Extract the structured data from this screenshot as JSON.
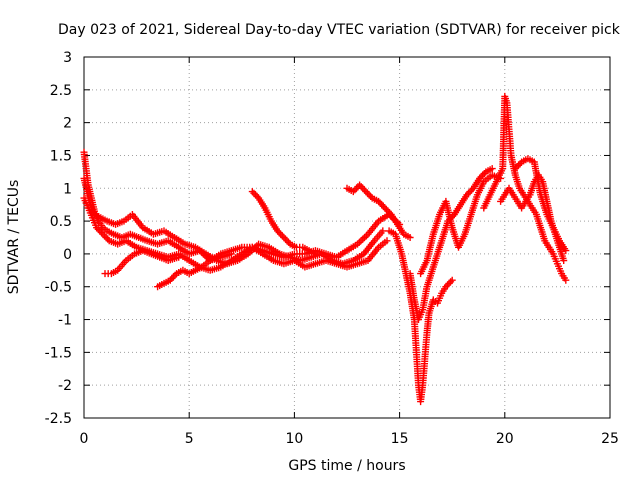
{
  "chart_data": {
    "type": "scatter",
    "title": "Day 023 of 2021, Sidereal Day-to-day VTEC variation (SDTVAR) for receiver pick",
    "xlabel": "GPS time / hours",
    "ylabel": "SDTVAR / TECUs",
    "xlim": [
      0,
      25
    ],
    "ylim": [
      -2.5,
      3
    ],
    "xticks": [
      0,
      5,
      10,
      15,
      20,
      25
    ],
    "yticks": [
      -2.5,
      -2,
      -1.5,
      -1,
      -0.5,
      0,
      0.5,
      1,
      1.5,
      2,
      2.5,
      3
    ],
    "xtick_labels": [
      "0",
      "5",
      "10",
      "15",
      "20",
      "25"
    ],
    "ytick_labels": [
      "-2.5",
      "-2",
      "-1.5",
      "-1",
      "-0.5",
      "0",
      "0.5",
      "1",
      "1.5",
      "2",
      "2.5",
      "3"
    ],
    "grid": true,
    "marker": "plus",
    "color": "#ff0000",
    "series": [
      {
        "x": [
          0.0,
          0.1,
          0.2,
          0.35,
          0.5,
          0.7,
          0.9,
          1.1,
          1.4,
          1.8,
          2.2,
          2.6,
          3.0,
          3.5,
          4.0,
          4.5,
          5.0,
          5.5,
          6.0,
          6.5,
          7.0,
          7.5,
          8.0,
          8.5,
          9.0,
          9.5,
          10.0,
          10.5,
          11.0,
          11.5,
          12.0,
          12.5,
          13.0,
          13.5,
          14.0,
          14.5,
          15.0
        ],
        "y": [
          1.55,
          1.3,
          1.05,
          0.85,
          0.65,
          0.5,
          0.4,
          0.35,
          0.3,
          0.25,
          0.3,
          0.25,
          0.2,
          0.15,
          0.2,
          0.1,
          0.0,
          0.05,
          -0.1,
          0.0,
          0.05,
          0.1,
          0.1,
          0.05,
          0.0,
          -0.05,
          0.0,
          0.0,
          0.05,
          0.0,
          -0.05,
          0.05,
          0.15,
          0.3,
          0.5,
          0.6,
          0.45
        ]
      },
      {
        "x": [
          0.0,
          0.15,
          0.3,
          0.5,
          0.8,
          1.1,
          1.5,
          1.9,
          2.3,
          2.8,
          3.3,
          3.8,
          4.3,
          4.8,
          5.3,
          5.8,
          6.3,
          6.8,
          7.3,
          7.8,
          8.3,
          8.8,
          9.3,
          9.8,
          10.3,
          10.8,
          11.3,
          11.8,
          12.3,
          12.8,
          13.3,
          13.8,
          14.2
        ],
        "y": [
          1.15,
          0.95,
          0.75,
          0.6,
          0.55,
          0.5,
          0.45,
          0.5,
          0.6,
          0.4,
          0.3,
          0.35,
          0.25,
          0.15,
          0.1,
          0.0,
          -0.1,
          -0.15,
          -0.1,
          0.0,
          0.15,
          0.1,
          0.0,
          -0.05,
          -0.1,
          -0.05,
          0.0,
          -0.1,
          -0.15,
          -0.1,
          0.0,
          0.2,
          0.35
        ]
      },
      {
        "x": [
          0.0,
          0.2,
          0.4,
          0.6,
          0.9,
          1.2,
          1.6,
          2.0,
          2.5,
          3.0,
          3.5,
          4.0,
          4.5,
          5.0,
          5.5,
          6.0,
          6.5,
          7.0,
          7.5,
          8.0,
          8.5,
          9.0,
          9.5,
          10.0,
          10.5,
          11.0,
          11.5,
          12.0,
          12.5,
          13.0,
          13.5,
          14.0,
          14.4
        ],
        "y": [
          0.85,
          0.7,
          0.55,
          0.4,
          0.3,
          0.2,
          0.15,
          0.2,
          0.1,
          0.05,
          0.0,
          -0.05,
          0.0,
          -0.1,
          -0.2,
          -0.25,
          -0.2,
          -0.1,
          0.0,
          0.1,
          0.0,
          -0.1,
          -0.15,
          -0.1,
          -0.2,
          -0.15,
          -0.1,
          -0.15,
          -0.2,
          -0.15,
          -0.1,
          0.1,
          0.2
        ]
      },
      {
        "x": [
          1.0,
          1.3,
          1.6,
          2.0,
          2.4,
          2.8,
          3.2,
          3.6,
          4.0,
          4.5
        ],
        "y": [
          -0.3,
          -0.3,
          -0.25,
          -0.1,
          0.0,
          0.05,
          0.0,
          -0.05,
          -0.1,
          -0.05
        ]
      },
      {
        "x": [
          3.5,
          3.8,
          4.1,
          4.4,
          4.7,
          5.0,
          5.3,
          5.6,
          6.0,
          6.5,
          7.0
        ],
        "y": [
          -0.5,
          -0.45,
          -0.4,
          -0.3,
          -0.25,
          -0.3,
          -0.25,
          -0.2,
          -0.1,
          -0.05,
          0.0
        ]
      },
      {
        "x": [
          8.0,
          8.3,
          8.6,
          8.9,
          9.2,
          9.5,
          9.8,
          10.1,
          10.4,
          10.7,
          11.0
        ],
        "y": [
          0.95,
          0.85,
          0.7,
          0.5,
          0.35,
          0.25,
          0.15,
          0.1,
          0.1,
          0.05,
          0.0
        ]
      },
      {
        "x": [
          12.5,
          12.8,
          13.1,
          13.4,
          13.7,
          14.0,
          14.3,
          14.6,
          14.9,
          15.2,
          15.5
        ],
        "y": [
          1.0,
          0.95,
          1.05,
          0.95,
          0.85,
          0.8,
          0.7,
          0.6,
          0.45,
          0.3,
          0.25
        ]
      },
      {
        "x": [
          14.5,
          14.8,
          15.1,
          15.3,
          15.5,
          15.7,
          15.8,
          15.9,
          16.0,
          16.1,
          16.2,
          16.3,
          16.4,
          16.6,
          16.8,
          17.0,
          17.2,
          17.5
        ],
        "y": [
          0.35,
          0.3,
          0.0,
          -0.3,
          -0.6,
          -1.0,
          -1.5,
          -2.0,
          -2.25,
          -2.0,
          -1.6,
          -1.2,
          -0.9,
          -0.7,
          -0.75,
          -0.6,
          -0.5,
          -0.4
        ]
      },
      {
        "x": [
          15.5,
          15.7,
          15.9,
          16.1,
          16.3,
          16.5,
          16.7,
          16.9,
          17.1,
          17.3,
          17.6,
          17.9,
          18.2,
          18.5,
          18.8,
          19.1,
          19.4
        ],
        "y": [
          -0.3,
          -0.7,
          -1.0,
          -0.85,
          -0.5,
          -0.3,
          -0.1,
          0.1,
          0.3,
          0.5,
          0.6,
          0.75,
          0.9,
          1.0,
          1.15,
          1.25,
          1.3
        ]
      },
      {
        "x": [
          16.0,
          16.3,
          16.6,
          16.9,
          17.2,
          17.5,
          17.8,
          18.1,
          18.4,
          18.7,
          19.0,
          19.4,
          19.8
        ],
        "y": [
          -0.3,
          -0.1,
          0.3,
          0.6,
          0.8,
          0.4,
          0.1,
          0.3,
          0.6,
          0.9,
          1.1,
          1.2,
          1.15
        ]
      },
      {
        "x": [
          19.0,
          19.3,
          19.6,
          19.9,
          20.0,
          20.1,
          20.2,
          20.3,
          20.5,
          20.7,
          20.9,
          21.1,
          21.3,
          21.5,
          21.7,
          21.9,
          22.1,
          22.3,
          22.5,
          22.7,
          22.9
        ],
        "y": [
          0.7,
          0.9,
          1.1,
          1.3,
          2.4,
          2.3,
          1.9,
          1.5,
          1.2,
          1.0,
          0.9,
          0.8,
          0.7,
          0.6,
          0.4,
          0.2,
          0.1,
          0.0,
          -0.15,
          -0.3,
          -0.4
        ]
      },
      {
        "x": [
          19.8,
          20.0,
          20.2,
          20.4,
          20.6,
          20.8,
          21.0,
          21.2,
          21.4,
          21.6,
          21.8,
          22.0,
          22.2,
          22.4,
          22.6,
          22.8
        ],
        "y": [
          0.8,
          0.9,
          1.0,
          0.9,
          0.8,
          0.7,
          0.8,
          0.9,
          1.1,
          1.2,
          1.1,
          0.8,
          0.5,
          0.3,
          0.1,
          -0.1
        ]
      },
      {
        "x": [
          20.5,
          20.8,
          21.1,
          21.4,
          21.7,
          22.0,
          22.3,
          22.6,
          22.9
        ],
        "y": [
          1.3,
          1.4,
          1.45,
          1.4,
          0.9,
          0.6,
          0.4,
          0.2,
          0.05
        ]
      }
    ]
  }
}
